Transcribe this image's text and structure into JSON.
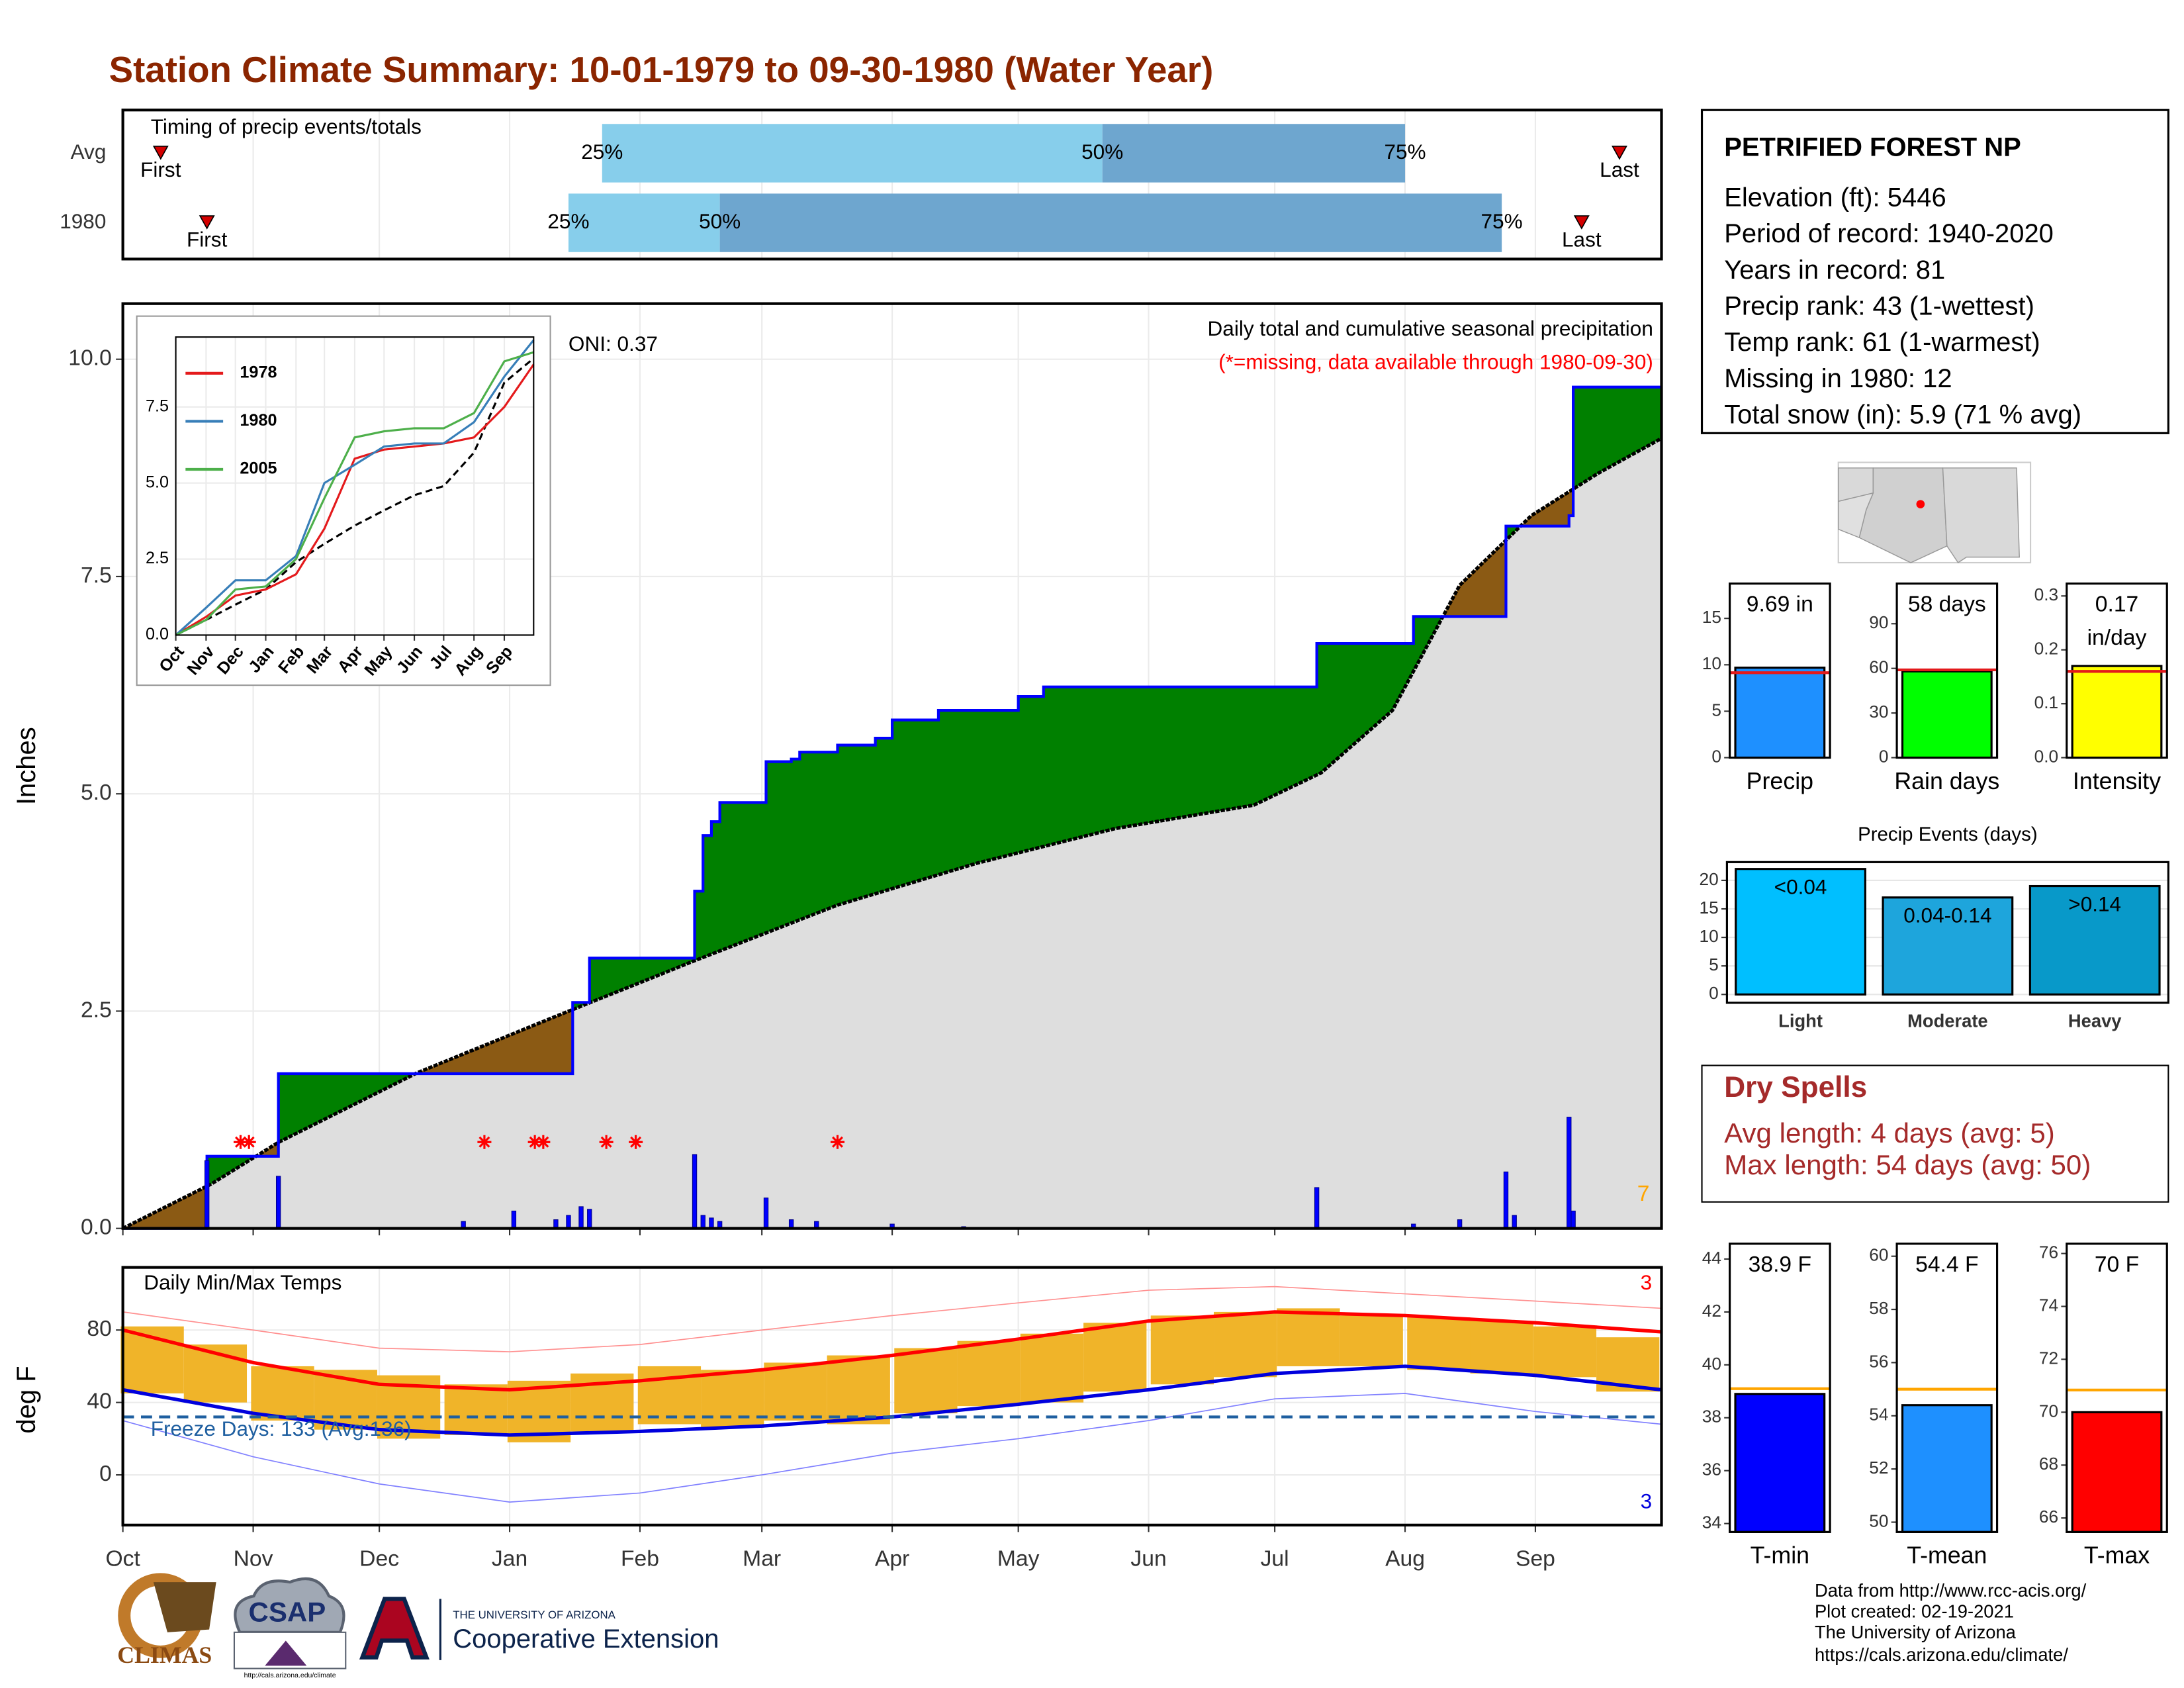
{
  "title": "Station Climate Summary: 10-01-1979 to 09-30-1980 (Water Year)",
  "station": {
    "name": "PETRIFIED FOREST NP",
    "lines": [
      "Elevation (ft): 5446",
      "Period of record: 1940-2020",
      "Years in record: 81",
      "Precip rank: 43 (1-wettest)",
      "Temp rank: 61 (1-warmest)",
      "Missing in 1980: 12",
      "Total snow (in): 5.9 (71 % avg)"
    ]
  },
  "dry_spells": {
    "title": "Dry Spells",
    "lines": [
      "Avg length: 4 days (avg: 5)",
      "Max length: 54 days (avg: 50)"
    ]
  },
  "footer": [
    "Data from http://www.rcc-acis.org/",
    "Plot created: 02-19-2021",
    "The University of Arizona",
    "https://cals.arizona.edu/climate/"
  ],
  "logos": {
    "climas": "CLIMAS",
    "csap": "CSAP",
    "csap_url": "http://cals.arizona.edu/climate",
    "university": "THE UNIVERSITY OF ARIZONA",
    "extension": "Cooperative Extension"
  },
  "chart_data": [
    {
      "type": "timeline",
      "title": "Timing of precip events/totals",
      "xlim": [
        0,
        366
      ],
      "colors": [
        "#87ceeb",
        "#6ea6cf"
      ],
      "marker_color": "#d40000",
      "rows": [
        {
          "name": "Avg",
          "markers": [
            {
              "label": "First",
              "value": 9
            },
            {
              "label": "25%",
              "value": 114
            },
            {
              "label": "50%",
              "value": 233
            },
            {
              "label": "75%",
              "value": 305
            },
            {
              "label": "Last",
              "value": 356
            }
          ]
        },
        {
          "name": "1980",
          "markers": [
            {
              "label": "First",
              "value": 20
            },
            {
              "label": "25%",
              "value": 106
            },
            {
              "label": "50%",
              "value": 142
            },
            {
              "label": "75%",
              "value": 328
            },
            {
              "label": "Last",
              "value": 347
            }
          ]
        }
      ]
    },
    {
      "type": "area",
      "title": "Daily total and cumulative seasonal precipitation",
      "subtitle": "(*=missing, data available through 1980-09-30)",
      "annotation": "ONI: 0.37",
      "corner_label": "7",
      "ylabel": "Inches",
      "xlim": [
        0,
        366
      ],
      "xticks": [
        0,
        31,
        61,
        92,
        123,
        152,
        183,
        213,
        244,
        274,
        305,
        336
      ],
      "ylim": [
        0,
        10.64
      ],
      "yticks": [
        {
          "value": 0,
          "label": "0.0"
        },
        {
          "value": 2.5,
          "label": "2.5"
        },
        {
          "value": 5,
          "label": "5.0"
        },
        {
          "value": 7.5,
          "label": "7.5"
        },
        {
          "value": 10,
          "label": "10.0"
        }
      ],
      "grid": true,
      "above_color": "#008000",
      "below_color": "#8b5a14",
      "base_color": "#dedede",
      "cumulative": {
        "color": "#0000ff",
        "x": [
          0,
          20,
          37,
          107,
          111,
          136,
          138,
          140,
          142,
          153,
          159,
          161,
          170,
          179,
          183,
          194,
          213,
          219,
          284,
          307,
          329,
          344,
          345,
          366
        ],
        "values": [
          0,
          0.83,
          1.78,
          2.6,
          3.11,
          3.88,
          4.52,
          4.68,
          4.9,
          5.37,
          5.4,
          5.48,
          5.56,
          5.64,
          5.85,
          5.96,
          6.12,
          6.23,
          6.73,
          7.04,
          8.08,
          8.2,
          9.68,
          9.68
        ]
      },
      "average": {
        "color": "#000000",
        "x": [
          0,
          21,
          37,
          70,
          103,
          136,
          170,
          203,
          236,
          269,
          285,
          302,
          318,
          335,
          351,
          366
        ],
        "values": [
          0,
          0.51,
          0.99,
          1.79,
          2.44,
          3.08,
          3.72,
          4.2,
          4.6,
          4.87,
          5.24,
          5.96,
          7.4,
          8.2,
          8.69,
          9.09
        ]
      },
      "daily": {
        "color": "#0000ff",
        "x": [
          20,
          37,
          81,
          93,
          103,
          106,
          109,
          111,
          136,
          138,
          140,
          142,
          153,
          159,
          165,
          183,
          200,
          284,
          307,
          318,
          329,
          331,
          344,
          345
        ],
        "values": [
          0.78,
          0.6,
          0.08,
          0.2,
          0.1,
          0.15,
          0.25,
          0.22,
          0.85,
          0.15,
          0.12,
          0.08,
          0.35,
          0.1,
          0.08,
          0.05,
          0.02,
          0.47,
          0.05,
          0.1,
          0.65,
          0.15,
          1.28,
          0.2
        ]
      },
      "missing_days": [
        28,
        30,
        86,
        98,
        100,
        115,
        122,
        170
      ],
      "missing_color": "#ff0000"
    },
    {
      "type": "line",
      "xlim": [
        0,
        366
      ],
      "xticks": [
        {
          "value": 0,
          "label": "Oct"
        },
        {
          "value": 31,
          "label": "Nov"
        },
        {
          "value": 61,
          "label": "Dec"
        },
        {
          "value": 92,
          "label": "Jan"
        },
        {
          "value": 123,
          "label": "Feb"
        },
        {
          "value": 152,
          "label": "Mar"
        },
        {
          "value": 183,
          "label": "Apr"
        },
        {
          "value": 213,
          "label": "May"
        },
        {
          "value": 244,
          "label": "Jun"
        },
        {
          "value": 274,
          "label": "Jul"
        },
        {
          "value": 305,
          "label": "Aug"
        },
        {
          "value": 336,
          "label": "Sep"
        }
      ],
      "ylim": [
        0,
        9.8
      ],
      "yticks": [
        {
          "value": 0,
          "label": "0.0"
        },
        {
          "value": 2.5,
          "label": "2.5"
        },
        {
          "value": 5,
          "label": "5.0"
        },
        {
          "value": 7.5,
          "label": "7.5"
        }
      ],
      "grid": true,
      "x": [
        0,
        31,
        61,
        92,
        123,
        152,
        183,
        213,
        244,
        274,
        305,
        336,
        366
      ],
      "series": [
        {
          "name": "1978",
          "color": "#e41a1c",
          "values": [
            0,
            0.6,
            1.3,
            1.5,
            2.0,
            3.5,
            5.8,
            6.1,
            6.2,
            6.3,
            6.5,
            7.5,
            8.9
          ]
        },
        {
          "name": "1980",
          "color": "#377eb8",
          "values": [
            0,
            0.9,
            1.8,
            1.8,
            2.6,
            5.0,
            5.6,
            6.2,
            6.3,
            6.3,
            7.0,
            8.5,
            9.7
          ]
        },
        {
          "name": "2005",
          "color": "#4daf4a",
          "values": [
            0,
            0.5,
            1.5,
            1.6,
            2.5,
            4.5,
            6.5,
            6.7,
            6.8,
            6.8,
            7.3,
            9.0,
            9.3
          ]
        }
      ],
      "average": {
        "color": "#000000",
        "values": [
          0,
          0.5,
          1.0,
          1.5,
          2.4,
          3.0,
          3.6,
          4.1,
          4.6,
          4.9,
          6.0,
          8.3,
          9.1
        ]
      }
    },
    {
      "type": "temperature",
      "title": "Daily Min/Max Temps",
      "annotation": "Freeze Days: 133 (Avg:136)",
      "record_high_count": 3,
      "record_low_count": 3,
      "ylabel": "deg F",
      "xlim": [
        0,
        366
      ],
      "xticks": [
        {
          "value": 0,
          "label": "Oct"
        },
        {
          "value": 31,
          "label": "Nov"
        },
        {
          "value": 61,
          "label": "Dec"
        },
        {
          "value": 92,
          "label": "Jan"
        },
        {
          "value": 123,
          "label": "Feb"
        },
        {
          "value": 152,
          "label": "Mar"
        },
        {
          "value": 183,
          "label": "Apr"
        },
        {
          "value": 213,
          "label": "May"
        },
        {
          "value": 244,
          "label": "Jun"
        },
        {
          "value": 274,
          "label": "Jul"
        },
        {
          "value": 305,
          "label": "Aug"
        },
        {
          "value": 336,
          "label": "Sep"
        }
      ],
      "ylim": [
        -27.7,
        114.6
      ],
      "yticks": [
        0,
        40,
        80
      ],
      "grid": true,
      "freeze_line": 32,
      "freeze_color": "#1f5fa0",
      "observed": {
        "color": "#f0b429",
        "x": [
          7,
          22,
          38,
          53,
          68,
          84,
          99,
          114,
          130,
          145,
          160,
          175,
          191,
          206,
          221,
          236,
          252,
          267,
          282,
          297,
          313,
          328,
          343,
          358
        ],
        "highs": [
          82,
          72,
          60,
          58,
          55,
          50,
          52,
          56,
          60,
          58,
          62,
          66,
          70,
          74,
          78,
          84,
          88,
          90,
          92,
          88,
          87,
          85,
          82,
          76
        ],
        "lows": [
          45,
          40,
          30,
          25,
          20,
          22,
          18,
          24,
          28,
          26,
          30,
          28,
          34,
          38,
          40,
          46,
          50,
          54,
          60,
          60,
          58,
          56,
          54,
          46
        ]
      },
      "lines": {
        "x": [
          0,
          31,
          61,
          92,
          123,
          152,
          183,
          213,
          244,
          274,
          305,
          336,
          366
        ],
        "record_high": [
          90,
          80,
          70,
          68,
          72,
          80,
          88,
          95,
          102,
          104,
          100,
          96,
          92
        ],
        "record_low": [
          30,
          10,
          -5,
          -15,
          -10,
          0,
          12,
          20,
          30,
          42,
          45,
          35,
          28
        ],
        "normal_high": [
          80,
          62,
          50,
          47,
          52,
          58,
          66,
          75,
          85,
          90,
          88,
          84,
          79
        ],
        "normal_low": [
          47,
          34,
          25,
          22,
          24,
          27,
          32,
          39,
          47,
          56,
          60,
          55,
          47
        ]
      },
      "line_colors": {
        "record_high": "#ff9090",
        "record_low": "#8080ff",
        "normal_high": "#ff0000",
        "normal_low": "#0000dd"
      }
    },
    {
      "type": "bar",
      "categories": [
        "Precip"
      ],
      "values": [
        9.69
      ],
      "value_labels": [
        "9.69 in"
      ],
      "average": 9.15,
      "color": "#1e90ff",
      "average_color": "#e31a1c",
      "ylim": [
        0,
        18.75
      ],
      "yticks": [
        0,
        5,
        10,
        15
      ]
    },
    {
      "type": "bar",
      "categories": [
        "Rain days"
      ],
      "values": [
        58
      ],
      "value_labels": [
        "58 days"
      ],
      "average": 59,
      "color": "#00ff00",
      "average_color": "#e31a1c",
      "ylim": [
        0,
        117
      ],
      "yticks": [
        0,
        30,
        60,
        90
      ]
    },
    {
      "type": "bar",
      "categories": [
        "Intensity"
      ],
      "values": [
        0.17
      ],
      "value_labels": [
        "0.17 in/day"
      ],
      "average": 0.16,
      "color": "#ffff00",
      "average_color": "#e31a1c",
      "ylim": [
        0,
        0.323
      ],
      "yticks": [
        {
          "value": 0,
          "label": "0.0"
        },
        {
          "value": 0.1,
          "label": "0.1"
        },
        {
          "value": 0.2,
          "label": "0.2"
        },
        {
          "value": 0.3,
          "label": "0.3"
        }
      ]
    },
    {
      "type": "bar",
      "title": "Precip Events (days)",
      "categories": [
        "Light",
        "Moderate",
        "Heavy"
      ],
      "values": [
        22,
        17,
        19
      ],
      "bin_labels": [
        "<0.04",
        "0.04-0.14",
        ">0.14"
      ],
      "colors": [
        "#00bfff",
        "#1ea5dc",
        "#0899c9"
      ],
      "ylim": [
        -1.46,
        23.2
      ],
      "yticks": [
        0,
        5,
        10,
        15,
        20
      ],
      "grid": true
    },
    {
      "type": "bar",
      "categories": [
        "T-min"
      ],
      "values": [
        38.9
      ],
      "value_labels": [
        "38.9 F"
      ],
      "average": 39.1,
      "color": "#0000ff",
      "average_color": "#ffa500",
      "ylim": [
        33.68,
        44.58
      ],
      "yticks": [
        34,
        36,
        38,
        40,
        42,
        44
      ]
    },
    {
      "type": "bar",
      "categories": [
        "T-mean"
      ],
      "values": [
        54.4
      ],
      "value_labels": [
        "54.4 F"
      ],
      "average": 55.0,
      "color": "#1e90ff",
      "average_color": "#ffa500",
      "ylim": [
        49.63,
        60.47
      ],
      "yticks": [
        50,
        52,
        54,
        56,
        58,
        60
      ]
    },
    {
      "type": "bar",
      "categories": [
        "T-max"
      ],
      "values": [
        70
      ],
      "value_labels": [
        "70 F"
      ],
      "average": 70.84,
      "color": "#ff0000",
      "average_color": "#ffa500",
      "ylim": [
        65.47,
        76.37
      ],
      "yticks": [
        66,
        68,
        70,
        72,
        74,
        76
      ]
    }
  ]
}
